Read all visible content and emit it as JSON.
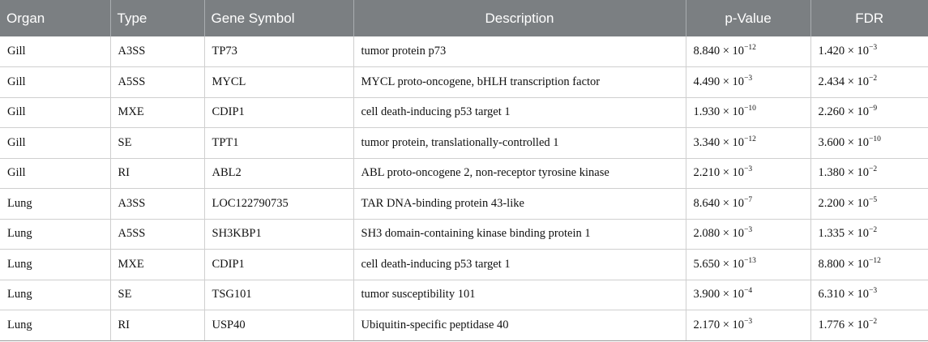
{
  "headers": [
    "Organ",
    "Type",
    "Gene Symbol",
    "Description",
    "p-Value",
    "FDR"
  ],
  "rows": [
    {
      "organ": "Gill",
      "type": "A3SS",
      "gene": "TP73",
      "description": "tumor protein p73",
      "p_base": "8.840 × 10",
      "p_exp": "−12",
      "fdr_base": "1.420 × 10",
      "fdr_exp": "−3"
    },
    {
      "organ": "Gill",
      "type": "A5SS",
      "gene": "MYCL",
      "description": "MYCL proto-oncogene, bHLH transcription factor",
      "p_base": "4.490 × 10",
      "p_exp": "−3",
      "fdr_base": "2.434 × 10",
      "fdr_exp": "−2"
    },
    {
      "organ": "Gill",
      "type": "MXE",
      "gene": "CDIP1",
      "description": "cell death-inducing p53 target 1",
      "p_base": "1.930 × 10",
      "p_exp": "−10",
      "fdr_base": "2.260 × 10",
      "fdr_exp": "−9"
    },
    {
      "organ": "Gill",
      "type": "SE",
      "gene": "TPT1",
      "description": "tumor protein, translationally-controlled 1",
      "p_base": "3.340 × 10",
      "p_exp": "−12",
      "fdr_base": "3.600 × 10",
      "fdr_exp": "−10"
    },
    {
      "organ": "Gill",
      "type": "RI",
      "gene": "ABL2",
      "description": "ABL proto-oncogene 2, non-receptor tyrosine kinase",
      "p_base": "2.210 × 10",
      "p_exp": "−3",
      "fdr_base": "1.380 × 10",
      "fdr_exp": "−2"
    },
    {
      "organ": "Lung",
      "type": "A3SS",
      "gene": "LOC122790735",
      "description": "TAR DNA-binding protein 43-like",
      "p_base": "8.640 × 10",
      "p_exp": "−7",
      "fdr_base": "2.200 × 10",
      "fdr_exp": "−5"
    },
    {
      "organ": "Lung",
      "type": "A5SS",
      "gene": "SH3KBP1",
      "description": "SH3 domain-containing kinase binding protein 1",
      "p_base": "2.080 × 10",
      "p_exp": "−3",
      "fdr_base": "1.335 × 10",
      "fdr_exp": "−2"
    },
    {
      "organ": "Lung",
      "type": "MXE",
      "gene": "CDIP1",
      "description": "cell death-inducing p53 target 1",
      "p_base": "5.650 × 10",
      "p_exp": "−13",
      "fdr_base": "8.800 × 10",
      "fdr_exp": "−12"
    },
    {
      "organ": "Lung",
      "type": "SE",
      "gene": "TSG101",
      "description": "tumor susceptibility 101",
      "p_base": "3.900 × 10",
      "p_exp": "−4",
      "fdr_base": "6.310 × 10",
      "fdr_exp": "−3"
    },
    {
      "organ": "Lung",
      "type": "RI",
      "gene": "USP40",
      "description": "Ubiquitin-specific peptidase 40",
      "p_base": "2.170 × 10",
      "p_exp": "−3",
      "fdr_base": "1.776 × 10",
      "fdr_exp": "−2"
    }
  ],
  "colors": {
    "header_bg": "#7b7f82",
    "header_text": "#ffffff",
    "grid": "#cfcfcf"
  }
}
